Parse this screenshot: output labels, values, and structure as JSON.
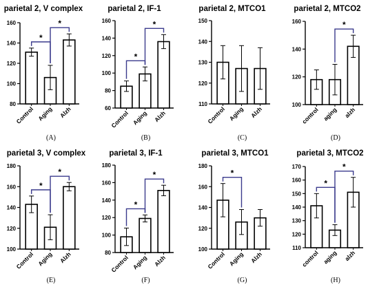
{
  "colors": {
    "bar_fill": "#ffffff",
    "bar_stroke": "#000000",
    "bracket": "#3a3a8c",
    "axis": "#000000"
  },
  "chart_data": [
    {
      "type": "bar",
      "title": "parietal 2, V complex",
      "panel_label": "(A)",
      "categories": [
        "Control",
        "Aging",
        "Alzh"
      ],
      "values": [
        131,
        106,
        143
      ],
      "errors": [
        4,
        12,
        6
      ],
      "ylim": [
        80,
        160
      ],
      "yticks": [
        80,
        100,
        120,
        140,
        160
      ],
      "xlabel": "",
      "ylabel": "",
      "significance": [
        {
          "from": 0,
          "to": 1,
          "label": "*"
        },
        {
          "from": 1,
          "to": 2,
          "label": "*"
        }
      ]
    },
    {
      "type": "bar",
      "title": "parietal 2, IF-1",
      "panel_label": "(B)",
      "categories": [
        "Control",
        "Aging",
        "Alzh"
      ],
      "values": [
        85,
        99,
        136
      ],
      "errors": [
        6,
        8,
        8
      ],
      "ylim": [
        60,
        160
      ],
      "yticks": [
        60,
        80,
        100,
        120,
        140,
        160
      ],
      "xlabel": "",
      "ylabel": "",
      "significance": [
        {
          "from": 0,
          "to": 1,
          "label": "*"
        },
        {
          "from": 1,
          "to": 2,
          "label": "*"
        }
      ]
    },
    {
      "type": "bar",
      "title": "parietal 2, MTCO1",
      "panel_label": "(C)",
      "categories": [
        "Control",
        "Aging",
        "Alzh"
      ],
      "values": [
        130,
        127,
        127
      ],
      "errors": [
        8,
        11,
        10
      ],
      "ylim": [
        110,
        150
      ],
      "yticks": [
        110,
        120,
        130,
        140,
        150
      ],
      "xlabel": "",
      "ylabel": "",
      "significance": []
    },
    {
      "type": "bar",
      "title": "parietal 2, MTCO2",
      "panel_label": "(D)",
      "categories": [
        "control",
        "aging",
        "alzh"
      ],
      "values": [
        118,
        118,
        142
      ],
      "errors": [
        7,
        11,
        8
      ],
      "ylim": [
        100,
        160
      ],
      "yticks": [
        100,
        120,
        140,
        160
      ],
      "xlabel": "",
      "ylabel": "",
      "significance": [
        {
          "from": 1,
          "to": 2,
          "label": "*"
        }
      ]
    },
    {
      "type": "bar",
      "title": "parietal 3, V complex",
      "panel_label": "(E)",
      "categories": [
        "Control",
        "Aging",
        "Alzh"
      ],
      "values": [
        143,
        121,
        160
      ],
      "errors": [
        8,
        12,
        4
      ],
      "ylim": [
        100,
        180
      ],
      "yticks": [
        100,
        120,
        140,
        160,
        180
      ],
      "xlabel": "",
      "ylabel": "",
      "significance": [
        {
          "from": 0,
          "to": 1,
          "label": "*"
        },
        {
          "from": 1,
          "to": 2,
          "label": "*"
        }
      ]
    },
    {
      "type": "bar",
      "title": "parietal 3, IF-1",
      "panel_label": "(F)",
      "categories": [
        "Control",
        "Aging",
        "Alzh"
      ],
      "values": [
        98,
        119,
        151
      ],
      "errors": [
        10,
        4,
        6
      ],
      "ylim": [
        80,
        180
      ],
      "yticks": [
        80,
        100,
        120,
        140,
        160,
        180
      ],
      "xlabel": "",
      "ylabel": "",
      "significance": [
        {
          "from": 0,
          "to": 1,
          "label": "*"
        },
        {
          "from": 1,
          "to": 2,
          "label": "*"
        }
      ]
    },
    {
      "type": "bar",
      "title": "parietal 3, MTCO1",
      "panel_label": "(G)",
      "categories": [
        "Control",
        "Aging",
        "Alzh"
      ],
      "values": [
        147,
        126,
        130
      ],
      "errors": [
        16,
        12,
        8
      ],
      "ylim": [
        100,
        180
      ],
      "yticks": [
        100,
        120,
        140,
        160,
        180
      ],
      "xlabel": "",
      "ylabel": "",
      "significance": [
        {
          "from": 0,
          "to": 1,
          "label": "*"
        }
      ]
    },
    {
      "type": "bar",
      "title": "parietal 3, MTCO2",
      "panel_label": "(H)",
      "categories": [
        "control",
        "aging",
        "alzh"
      ],
      "values": [
        141,
        123,
        151
      ],
      "errors": [
        9,
        4,
        11
      ],
      "ylim": [
        110,
        170
      ],
      "yticks": [
        110,
        120,
        130,
        140,
        150,
        160,
        170
      ],
      "xlabel": "",
      "ylabel": "",
      "significance": [
        {
          "from": 0,
          "to": 1,
          "label": "*"
        },
        {
          "from": 1,
          "to": 2,
          "label": "*"
        }
      ]
    }
  ]
}
